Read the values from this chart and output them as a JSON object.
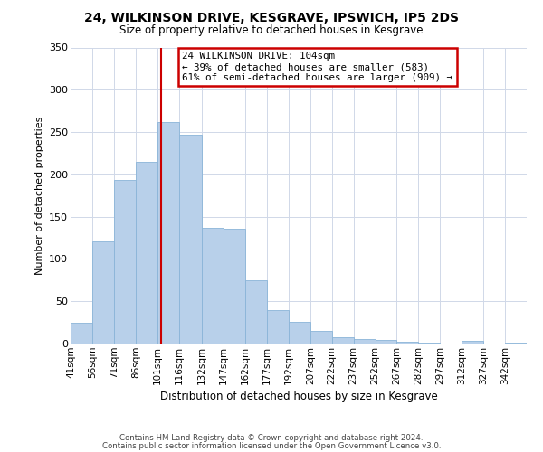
{
  "title": "24, WILKINSON DRIVE, KESGRAVE, IPSWICH, IP5 2DS",
  "subtitle": "Size of property relative to detached houses in Kesgrave",
  "xlabel": "Distribution of detached houses by size in Kesgrave",
  "ylabel": "Number of detached properties",
  "bar_labels": [
    "41sqm",
    "56sqm",
    "71sqm",
    "86sqm",
    "101sqm",
    "116sqm",
    "132sqm",
    "147sqm",
    "162sqm",
    "177sqm",
    "192sqm",
    "207sqm",
    "222sqm",
    "237sqm",
    "252sqm",
    "267sqm",
    "282sqm",
    "297sqm",
    "312sqm",
    "327sqm",
    "342sqm"
  ],
  "bar_values": [
    25,
    121,
    193,
    215,
    262,
    247,
    137,
    136,
    75,
    40,
    26,
    15,
    7,
    5,
    4,
    2,
    1,
    0,
    3,
    0,
    1
  ],
  "bar_color": "#b8d0ea",
  "bar_edge_color": "#8ab4d8",
  "vline_x": 104,
  "bin_edges": [
    41,
    56,
    71,
    86,
    101,
    116,
    132,
    147,
    162,
    177,
    192,
    207,
    222,
    237,
    252,
    267,
    282,
    297,
    312,
    327,
    342,
    357
  ],
  "annotation_text": "24 WILKINSON DRIVE: 104sqm\n← 39% of detached houses are smaller (583)\n61% of semi-detached houses are larger (909) →",
  "annotation_box_color": "#ffffff",
  "annotation_box_edge": "#cc0000",
  "vline_color": "#cc0000",
  "ylim": [
    0,
    350
  ],
  "yticks": [
    0,
    50,
    100,
    150,
    200,
    250,
    300,
    350
  ],
  "footer_line1": "Contains HM Land Registry data © Crown copyright and database right 2024.",
  "footer_line2": "Contains public sector information licensed under the Open Government Licence v3.0.",
  "background_color": "#ffffff",
  "grid_color": "#d0d8e8"
}
